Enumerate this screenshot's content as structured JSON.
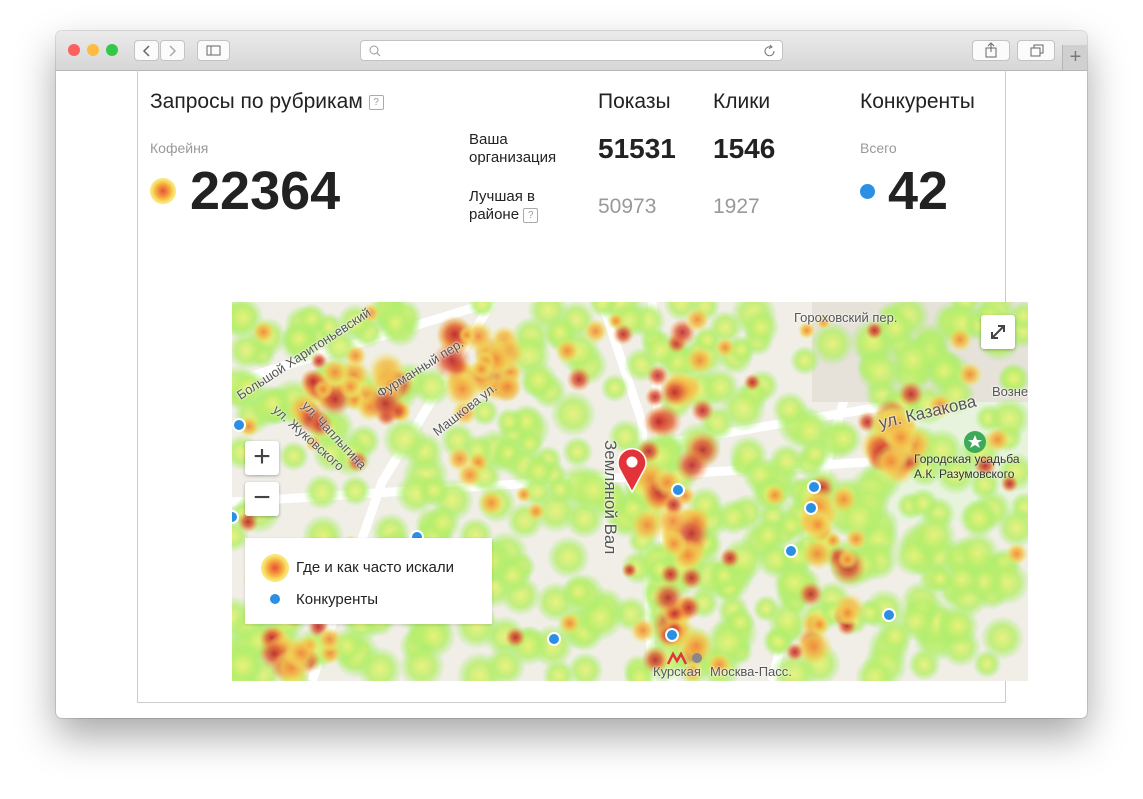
{
  "header": {
    "title": "Запросы по рубрикам",
    "help": "?"
  },
  "category": {
    "label": "Кофейня",
    "value": 22364
  },
  "metrics": {
    "columns": [
      "Показы",
      "Клики"
    ],
    "rows": [
      {
        "label": "Ваша организация",
        "values": [
          51531,
          1546
        ]
      },
      {
        "label": "Лучшая в районе",
        "help": "?",
        "values": [
          50973,
          1927
        ]
      }
    ]
  },
  "competitors": {
    "title": "Конкуренты",
    "label": "Всего",
    "value": 42
  },
  "map": {
    "streets": [
      "Большой Харитоньевский",
      "Фурманный пер.",
      "ул. Жуковского",
      "ул. Чаплыгина",
      "Машкова ул.",
      "Гороховский пер.",
      "ул. Казакова",
      "Возне",
      "Земляной Вал",
      "Курская",
      "Москва-Пасс."
    ],
    "poi": "Городская усадьба А.К. Разумовского",
    "zoom_in": "+",
    "zoom_out": "−",
    "legend": [
      "Где и как часто искали",
      "Конкуренты"
    ]
  }
}
